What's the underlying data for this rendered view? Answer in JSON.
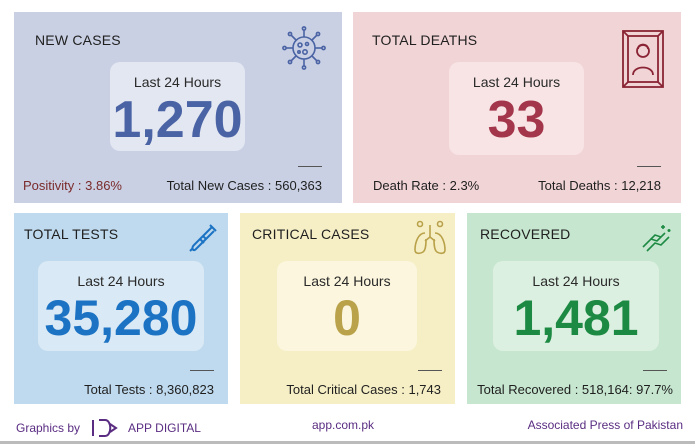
{
  "new_cases": {
    "title": "NEW CASES",
    "period_label": "Last 24 Hours",
    "value": "1,270",
    "left_stat": "Positivity : 3.86%",
    "right_stat": "Total New Cases : 560,363",
    "icon": "virus-icon",
    "value_color": "#4a63a4",
    "left_stat_color": "#7a2b2b"
  },
  "total_deaths": {
    "title": "TOTAL DEATHS",
    "period_label": "Last 24 Hours",
    "value": "33",
    "left_stat": "Death Rate : 2.3%",
    "right_stat": "Total Deaths : 12,218",
    "icon": "portrait-icon",
    "value_color": "#a3364b"
  },
  "total_tests": {
    "title": "TOTAL TESTS",
    "period_label": "Last 24 Hours",
    "value": "35,280",
    "right_stat": "Total Tests : 8,360,823",
    "icon": "test-tube-icon",
    "value_color": "#1c73c4"
  },
  "critical_cases": {
    "title": "CRITICAL CASES",
    "period_label": "Last 24 Hours",
    "value": "0",
    "right_stat": "Total Critical Cases : 1,743",
    "icon": "lungs-icon",
    "value_color": "#b9a24a"
  },
  "recovered": {
    "title": "RECOVERED",
    "period_label": "Last 24 Hours",
    "value": "1,481",
    "right_stat": "Total Recovered : 518,164: 97.7%",
    "icon": "handshake-icon",
    "value_color": "#1d8a43"
  },
  "footer": {
    "graphics_by": "Graphics by",
    "brand": "APP DIGITAL",
    "website": "app.com.pk",
    "organization": "Associated Press of Pakistan"
  }
}
